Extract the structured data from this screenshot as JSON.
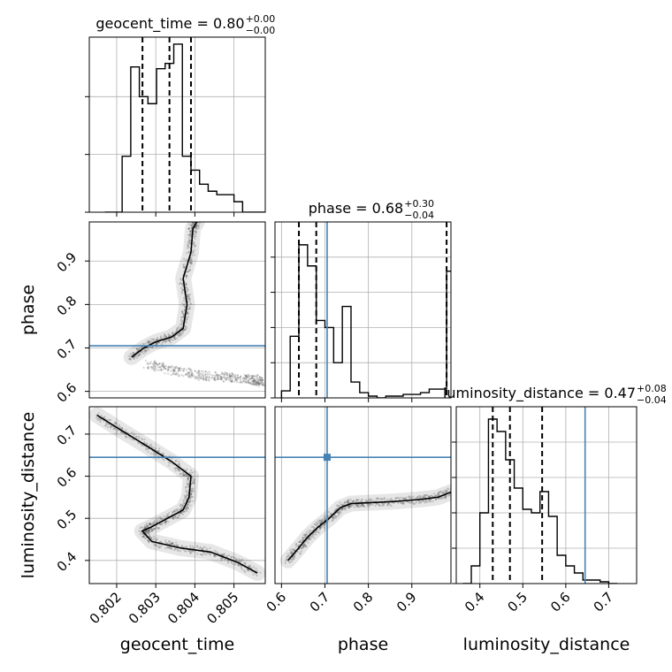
{
  "chart_data": {
    "type": "corner",
    "parameters": [
      "geocent_time",
      "phase",
      "luminosity_distance"
    ],
    "truth_color": "#4682b4",
    "grid": true,
    "panels": [
      {
        "id": "geocent_time_hist",
        "type": "histogram",
        "param": "geocent_time",
        "title": {
          "main": "geocent_time = 0.80",
          "sup": "+0.00",
          "sub": "−0.00"
        },
        "xlim": [
          0.8013,
          0.8058
        ],
        "ylim": [
          0,
          1.0
        ],
        "bin_edges": [
          0.8017,
          0.80192,
          0.80214,
          0.80236,
          0.80258,
          0.8028,
          0.80302,
          0.80324,
          0.80346,
          0.80368,
          0.8039,
          0.80412,
          0.80434,
          0.80456,
          0.80478,
          0.805,
          0.80522,
          0.80544,
          0.80566,
          0.80588
        ],
        "counts": [
          0.0,
          0.0,
          0.32,
          0.83,
          0.66,
          0.62,
          0.82,
          0.85,
          0.96,
          0.32,
          0.24,
          0.16,
          0.12,
          0.1,
          0.1,
          0.06,
          0.0,
          0.0,
          0.0
        ],
        "quantiles": [
          0.80266,
          0.80335,
          0.8039
        ],
        "yticks": [
          0.0,
          0.33,
          0.66
        ],
        "xticks": [
          0.802,
          0.803,
          0.804,
          0.805
        ],
        "xtick_labels_shown": false
      },
      {
        "id": "phase_vs_geocent_time",
        "type": "2d-density",
        "x": "geocent_time",
        "y": "phase",
        "xlim": [
          0.8013,
          0.8058
        ],
        "ylim": [
          0.585,
          0.99
        ],
        "truth": {
          "y": 0.705
        },
        "yticks": [
          0.6,
          0.7,
          0.8,
          0.9
        ],
        "ytick_labels": [
          "0.6",
          "0.7",
          "0.8",
          "0.9"
        ],
        "ylabel": "phase",
        "xtick_labels_shown": false,
        "ridge": [
          [
            0.80238,
            0.679
          ],
          [
            0.8027,
            0.7
          ],
          [
            0.803,
            0.714
          ],
          [
            0.8034,
            0.725
          ],
          [
            0.8037,
            0.745
          ],
          [
            0.8038,
            0.8
          ],
          [
            0.8037,
            0.86
          ],
          [
            0.8039,
            0.92
          ],
          [
            0.80395,
            0.975
          ],
          [
            0.80405,
            0.99
          ]
        ],
        "tail": [
          [
            0.8028,
            0.662
          ],
          [
            0.8035,
            0.647
          ],
          [
            0.8042,
            0.636
          ],
          [
            0.8049,
            0.632
          ],
          [
            0.8055,
            0.628
          ],
          [
            0.8057,
            0.62
          ]
        ]
      },
      {
        "id": "phase_hist",
        "type": "histogram",
        "param": "phase",
        "title": {
          "main": "phase = 0.68",
          "sup": "+0.30",
          "sub": "−0.04"
        },
        "xlim": [
          0.585,
          0.99
        ],
        "ylim": [
          0,
          1.0
        ],
        "bin_edges": [
          0.6,
          0.62,
          0.64,
          0.66,
          0.68,
          0.7,
          0.72,
          0.74,
          0.76,
          0.78,
          0.8,
          0.82,
          0.84,
          0.86,
          0.88,
          0.9,
          0.92,
          0.94,
          0.96,
          0.98,
          1.0
        ],
        "counts": [
          0.04,
          0.35,
          0.87,
          0.75,
          0.44,
          0.4,
          0.2,
          0.52,
          0.09,
          0.03,
          0.01,
          0.0,
          0.01,
          0.01,
          0.02,
          0.02,
          0.03,
          0.05,
          0.05,
          0.72
        ],
        "quantiles": [
          0.64,
          0.68,
          0.98
        ],
        "truth": 0.705,
        "yticks": [
          0.0,
          0.2,
          0.4,
          0.6,
          0.8
        ],
        "xticks": [
          0.6,
          0.7,
          0.8,
          0.9
        ],
        "xtick_labels_shown": false
      },
      {
        "id": "luminosity_distance_vs_geocent_time",
        "type": "2d-density",
        "x": "geocent_time",
        "y": "luminosity_distance",
        "xlim": [
          0.8013,
          0.8058
        ],
        "ylim": [
          0.345,
          0.765
        ],
        "truth": {
          "y": 0.645
        },
        "xticks": [
          0.802,
          0.803,
          0.804,
          0.805
        ],
        "xtick_labels": [
          "0.802",
          "0.803",
          "0.804",
          "0.805"
        ],
        "yticks": [
          0.4,
          0.5,
          0.6,
          0.7
        ],
        "ytick_labels": [
          "0.4",
          "0.5",
          "0.6",
          "0.7"
        ],
        "xlabel": "geocent_time",
        "ylabel": "luminosity_distance",
        "ridge": [
          [
            0.8015,
            0.745
          ],
          [
            0.8021,
            0.71
          ],
          [
            0.8028,
            0.67
          ],
          [
            0.8034,
            0.635
          ],
          [
            0.8039,
            0.6
          ],
          [
            0.80385,
            0.55
          ],
          [
            0.8037,
            0.52
          ],
          [
            0.8033,
            0.5
          ],
          [
            0.8029,
            0.48
          ],
          [
            0.80265,
            0.47
          ],
          [
            0.8029,
            0.445
          ],
          [
            0.8036,
            0.43
          ],
          [
            0.8044,
            0.42
          ],
          [
            0.8051,
            0.395
          ],
          [
            0.8056,
            0.37
          ]
        ]
      },
      {
        "id": "luminosity_distance_vs_phase",
        "type": "2d-density",
        "x": "phase",
        "y": "luminosity_distance",
        "xlim": [
          0.585,
          0.99
        ],
        "ylim": [
          0.345,
          0.765
        ],
        "truth": {
          "x": 0.705,
          "y": 0.645
        },
        "xticks": [
          0.6,
          0.7,
          0.8,
          0.9
        ],
        "xtick_labels": [
          "0.6",
          "0.7",
          "0.8",
          "0.9"
        ],
        "xlabel": "phase",
        "ridge": [
          [
            0.615,
            0.4
          ],
          [
            0.64,
            0.43
          ],
          [
            0.66,
            0.455
          ],
          [
            0.685,
            0.48
          ],
          [
            0.71,
            0.5
          ],
          [
            0.735,
            0.525
          ],
          [
            0.76,
            0.535
          ],
          [
            0.8,
            0.537
          ],
          [
            0.86,
            0.54
          ],
          [
            0.92,
            0.545
          ],
          [
            0.96,
            0.55
          ],
          [
            0.99,
            0.562
          ]
        ]
      },
      {
        "id": "luminosity_distance_hist",
        "type": "histogram",
        "param": "luminosity_distance",
        "title": {
          "main": "luminosity_distance = 0.47",
          "sup": "+0.08",
          "sub": "−0.04"
        },
        "xlim": [
          0.345,
          0.765
        ],
        "ylim": [
          0,
          1.0
        ],
        "bin_edges": [
          0.36,
          0.38,
          0.4,
          0.42,
          0.44,
          0.46,
          0.48,
          0.5,
          0.52,
          0.54,
          0.56,
          0.58,
          0.6,
          0.62,
          0.64,
          0.66,
          0.68,
          0.7,
          0.72
        ],
        "counts": [
          0.0,
          0.1,
          0.4,
          0.93,
          0.86,
          0.7,
          0.54,
          0.42,
          0.4,
          0.52,
          0.38,
          0.16,
          0.1,
          0.06,
          0.02,
          0.02,
          0.01,
          0.0
        ],
        "quantiles": [
          0.43,
          0.47,
          0.545
        ],
        "truth": 0.645,
        "yticks": [
          0.0,
          0.2,
          0.4,
          0.6,
          0.8
        ],
        "xticks": [
          0.4,
          0.5,
          0.6,
          0.7
        ],
        "xtick_labels": [
          "0.4",
          "0.5",
          "0.6",
          "0.7"
        ],
        "xlabel": "luminosity_distance"
      }
    ]
  }
}
